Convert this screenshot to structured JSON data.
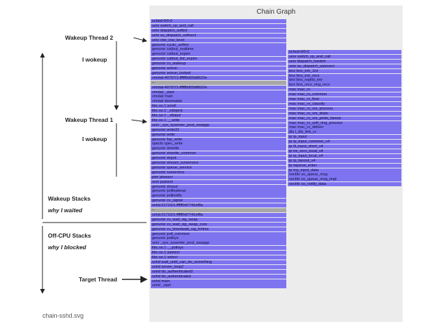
{
  "title": "Chain Graph",
  "caption": "chain-sshd.svg",
  "annotations": [
    {
      "text": "Wakeup Thread 2",
      "italic": false
    },
    {
      "text": "I wokeup",
      "italic": false
    },
    {
      "text": "Wakeup Thread 1",
      "italic": false
    },
    {
      "text": "I wokeup",
      "italic": false
    },
    {
      "text": "Wakeup Stacks",
      "italic": false
    },
    {
      "text": "why I waited",
      "italic": true
    },
    {
      "text": "Off-CPU Stacks",
      "italic": false
    },
    {
      "text": "why I blocked",
      "italic": true
    },
    {
      "text": "Target Thread",
      "italic": false
    }
  ],
  "left_column": [
    {
      "label": "sched-0/0-0",
      "tone": "blue"
    },
    {
      "label": "unix`switch_sp_and_call",
      "tone": "blue"
    },
    {
      "label": "unix`dispatch_softint",
      "tone": "blue"
    },
    {
      "label": "unix`av_dispatch_softvect",
      "tone": "blue"
    },
    {
      "label": "unix`cbe_low_level",
      "tone": "blue"
    },
    {
      "label": "genunix`cyclic_softint",
      "tone": "blue"
    },
    {
      "label": "genunix`callout_realtime",
      "tone": "blue"
    },
    {
      "label": "genunix`callout_expire",
      "tone": "blue"
    },
    {
      "label": "genunix`callout_list_expire",
      "tone": "blue"
    },
    {
      "label": "genunix`cv_wakeup",
      "tone": "blue"
    },
    {
      "label": "genunix`setrun",
      "tone": "blue"
    },
    {
      "label": "genunix`setrun_locked",
      "tone": "blue"
    },
    {
      "label": "vmstat-40797/1-ffffff0d55d8622e",
      "tone": "blue"
    },
    {
      "label": "--",
      "tone": "grey"
    },
    {
      "label": "vmstat-40797/1-ffffff0d55d8622e",
      "tone": "blue"
    },
    {
      "label": "vmstat`_start",
      "tone": "blue"
    },
    {
      "label": "vmstat`main",
      "tone": "blue"
    },
    {
      "label": "vmstat`dovmstats",
      "tone": "blue"
    },
    {
      "label": "libc.so.1`printf",
      "tone": "blue"
    },
    {
      "label": "libc.so.1`_ndoprnt",
      "tone": "blue"
    },
    {
      "label": "libc.so.1`_xflsbuf",
      "tone": "blue"
    },
    {
      "label": "libc.so.1`__write",
      "tone": "blue"
    },
    {
      "label": "unix`_sys_sysenter_post_swapgs",
      "tone": "blue"
    },
    {
      "label": "genunix`write32",
      "tone": "blue"
    },
    {
      "label": "genunix`write",
      "tone": "blue"
    },
    {
      "label": "genunix`fop_write",
      "tone": "blue"
    },
    {
      "label": "specfs`spec_write",
      "tone": "blue"
    },
    {
      "label": "genunix`strwrite",
      "tone": "blue"
    },
    {
      "label": "genunix`strwrite_common",
      "tone": "blue"
    },
    {
      "label": "genunix`strput",
      "tone": "blue"
    },
    {
      "label": "genunix`stream_runservice",
      "tone": "blue"
    },
    {
      "label": "genunix`queue_service",
      "tone": "blue"
    },
    {
      "label": "genunix`runservice",
      "tone": "blue"
    },
    {
      "label": "ptm`ptswsrv",
      "tone": "blue"
    },
    {
      "label": "unix`putnext",
      "tone": "blue"
    },
    {
      "label": "genunix`strrput",
      "tone": "blue"
    },
    {
      "label": "genunix`pollwakeup",
      "tone": "blue"
    },
    {
      "label": "genunix`pollnotify",
      "tone": "blue"
    },
    {
      "label": "genunix`cv_signal",
      "tone": "blue"
    },
    {
      "label": "sshd-21710/1-ffffff0d7741ef8a",
      "tone": "blue"
    },
    {
      "label": "--",
      "tone": "grey"
    },
    {
      "label": "sshd-21710/1-ffffff0d7741ef8a",
      "tone": "blue"
    },
    {
      "label": "genunix`cv_wait_sig_swap",
      "tone": "blue"
    },
    {
      "label": "genunix`cv_wait_sig_swap_core",
      "tone": "blue"
    },
    {
      "label": "genunix`cv_timedwait_sig_hrtime",
      "tone": "blue"
    },
    {
      "label": "genunix`poll_common",
      "tone": "blue"
    },
    {
      "label": "genunix`pollsys",
      "tone": "blue"
    },
    {
      "label": "unix`_sys_sysenter_post_swapgs",
      "tone": "blue"
    },
    {
      "label": "libc.so.1`__pollsys",
      "tone": "blue"
    },
    {
      "label": "libc.so.1`pselect",
      "tone": "blue"
    },
    {
      "label": "libc.so.1`select",
      "tone": "blue"
    },
    {
      "label": "sshd`wait_until_can_do_something",
      "tone": "blue"
    },
    {
      "label": "sshd`server_loop2",
      "tone": "blue"
    },
    {
      "label": "sshd`do_authenticated2",
      "tone": "blue"
    },
    {
      "label": "sshd`do_authenticated",
      "tone": "blue"
    },
    {
      "label": "sshd`main",
      "tone": "blue"
    },
    {
      "label": "sshd`_start",
      "tone": "blue"
    }
  ],
  "right_column": [
    {
      "label": "sched-0/0-0",
      "tone": "blue"
    },
    {
      "label": "unix`switch_sp_and_call",
      "tone": "blue"
    },
    {
      "label": "unix`dispatch_hardint",
      "tone": "blue"
    },
    {
      "label": "unix`av_dispatch_autovect",
      "tone": "blue"
    },
    {
      "label": "bnx`bnx_intr_1lvl",
      "tone": "blue"
    },
    {
      "label": "bnx`bnx_intr_recv",
      "tone": "blue"
    },
    {
      "label": "bnx`bnx_rxpkts_intr",
      "tone": "blue"
    },
    {
      "label": "bnx`bnx_recv_ring_recv",
      "tone": "blue"
    },
    {
      "label": "mac`mac_rx",
      "tone": "blue"
    },
    {
      "label": "mac`mac_rx_common",
      "tone": "blue"
    },
    {
      "label": "mac`mac_rx_flow",
      "tone": "blue"
    },
    {
      "label": "mac`mac_rx_classify",
      "tone": "blue"
    },
    {
      "label": "mac`mac_rx_srs_process",
      "tone": "blue"
    },
    {
      "label": "mac`mac_rx_srs_drain",
      "tone": "blue"
    },
    {
      "label": "mac`mac_rx_srs_proto_fanout",
      "tone": "blue"
    },
    {
      "label": "mac`mac_rx_soft_ring_process",
      "tone": "blue"
    },
    {
      "label": "mac`mac_rx_deliver",
      "tone": "blue"
    },
    {
      "label": "dls`i_dls_link_rx",
      "tone": "blue"
    },
    {
      "label": "ip`ip_input",
      "tone": "blue"
    },
    {
      "label": "ip`ip_input_common_v4",
      "tone": "blue"
    },
    {
      "label": "ip`ill_input_short_v4",
      "tone": "blue"
    },
    {
      "label": "ip`ire_recv_local_v4",
      "tone": "blue"
    },
    {
      "label": "ip`ip_input_local_v4",
      "tone": "blue"
    },
    {
      "label": "ip`ip_fanout_v4",
      "tone": "blue"
    },
    {
      "label": "ip`squeue_enter",
      "tone": "blue"
    },
    {
      "label": "ip`tcp_input_data",
      "tone": "blue"
    },
    {
      "label": "sockfs`so_queue_msg",
      "tone": "blue"
    },
    {
      "label": "sockfs`so_queue_msg_impl",
      "tone": "blue"
    },
    {
      "label": "sockfs`so_notify_data",
      "tone": "blue"
    }
  ]
}
